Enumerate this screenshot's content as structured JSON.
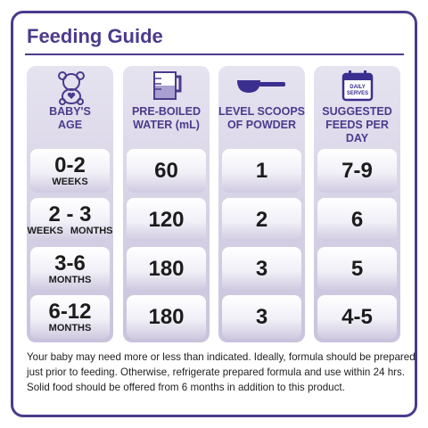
{
  "header": {
    "title": "Feeding Guide"
  },
  "table": {
    "columns": [
      [
        "BABY'S",
        "AGE"
      ],
      [
        "PRE-BOILED",
        "WATER (mL)"
      ],
      [
        "LEVEL SCOOPS",
        "OF POWDER"
      ],
      [
        "SUGGESTED",
        "FEEDS PER DAY"
      ]
    ],
    "calendar_icon_text": [
      "DAILY",
      "SERVES"
    ],
    "rows": [
      {
        "age": "0-2",
        "unit": [
          "WEEKS"
        ],
        "water": "60",
        "scoops": "1",
        "feeds": "7-9"
      },
      {
        "age": "2 - 3",
        "unit": [
          "WEEKS",
          "MONTHS"
        ],
        "water": "120",
        "scoops": "2",
        "feeds": "6"
      },
      {
        "age": "3-6",
        "unit": [
          "MONTHS"
        ],
        "water": "180",
        "scoops": "3",
        "feeds": "5"
      },
      {
        "age": "6-12",
        "unit": [
          "MONTHS"
        ],
        "water": "180",
        "scoops": "3",
        "feeds": "4-5"
      }
    ]
  },
  "footer": {
    "lines": [
      "Your baby may need more or less than indicated. Ideally, formula should be prepared",
      "just prior to feeding. Otherwise, refrigerate prepared formula and use within 24 hrs.",
      "Solid food should be offered from 6 months in addition to this product."
    ]
  }
}
